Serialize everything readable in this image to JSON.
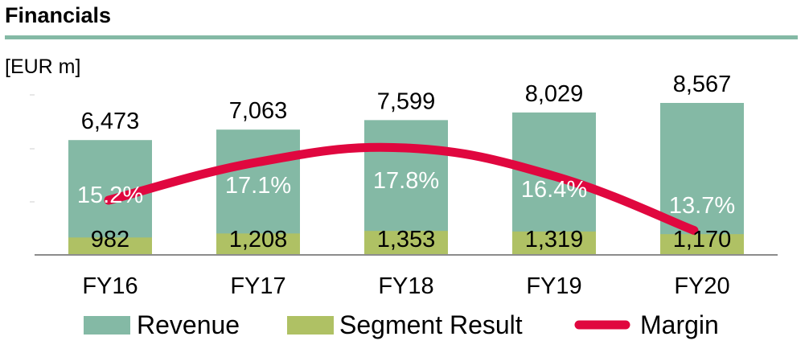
{
  "header": {
    "title": "Financials"
  },
  "colors": {
    "revenue": "#84b9a5",
    "segment": "#afc164",
    "margin": "#e0073f",
    "rule": "#84b9a5",
    "axis": "#8c8c8c"
  },
  "chart_data": {
    "type": "bar",
    "unit_label": "[EUR m]",
    "categories": [
      "FY16",
      "FY17",
      "FY18",
      "FY19",
      "FY20"
    ],
    "series": [
      {
        "name": "Revenue",
        "values": [
          6473,
          7063,
          7599,
          8029,
          8567
        ],
        "labels": [
          "6,473",
          "7,063",
          "7,599",
          "8,029",
          "8,567"
        ]
      },
      {
        "name": "Segment Result",
        "values": [
          982,
          1208,
          1353,
          1319,
          1170
        ],
        "labels": [
          "982",
          "1,208",
          "1,353",
          "1,319",
          "1,170"
        ]
      },
      {
        "name": "Margin",
        "type": "line",
        "values": [
          15.2,
          17.1,
          17.8,
          16.4,
          13.7
        ],
        "labels": [
          "15.2%",
          "17.1%",
          "17.8%",
          "16.4%",
          "13.7%"
        ]
      }
    ],
    "legend": {
      "position": "bottom",
      "items": [
        "Revenue",
        "Segment Result",
        "Margin"
      ]
    }
  }
}
